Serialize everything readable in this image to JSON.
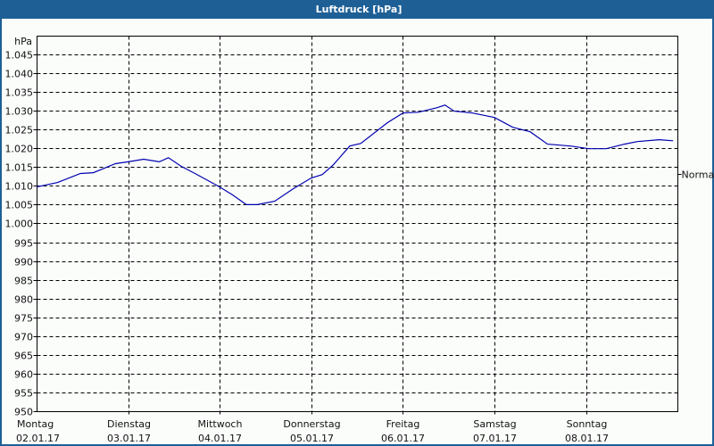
{
  "window": {
    "title": "Luftdruck [hPa]",
    "accent_color": "#1e6096"
  },
  "chart_data": {
    "type": "line",
    "title": "Luftdruck [hPa]",
    "xlabel": "",
    "ylabel": "hPa",
    "ylim": [
      950,
      1045
    ],
    "yticks": [
      "1.045",
      "1.040",
      "1.035",
      "1.030",
      "1.025",
      "1.020",
      "1.015",
      "1.010",
      "1.005",
      "1.000",
      "995",
      "990",
      "985",
      "980",
      "975",
      "970",
      "965",
      "960",
      "955",
      "950"
    ],
    "ytick_values": [
      1045,
      1040,
      1035,
      1030,
      1025,
      1020,
      1015,
      1010,
      1005,
      1000,
      995,
      990,
      985,
      980,
      975,
      970,
      965,
      960,
      955,
      950
    ],
    "x_categories": [
      {
        "day": "Montag",
        "date": "02.01.17"
      },
      {
        "day": "Dienstag",
        "date": "03.01.17"
      },
      {
        "day": "Mittwoch",
        "date": "04.01.17"
      },
      {
        "day": "Donnerstag",
        "date": "05.01.17"
      },
      {
        "day": "Freitag",
        "date": "06.01.17"
      },
      {
        "day": "Samstag",
        "date": "07.01.17"
      },
      {
        "day": "Sonntag",
        "date": "08.01.17"
      }
    ],
    "grid": true,
    "grid_style": "dashed",
    "reference_line": {
      "label": "Normal",
      "value": 1013.25
    },
    "series": [
      {
        "name": "Luftdruck",
        "color": "#0000b0",
        "x_days": [
          0.0,
          0.23,
          0.48,
          0.62,
          0.86,
          1.0,
          1.17,
          1.34,
          1.44,
          1.58,
          1.73,
          2.0,
          2.14,
          2.29,
          2.41,
          2.6,
          2.8,
          3.0,
          3.12,
          3.24,
          3.42,
          3.54,
          3.83,
          4.0,
          4.17,
          4.37,
          4.46,
          4.56,
          4.76,
          5.0,
          5.2,
          5.39,
          5.58,
          5.83,
          6.03,
          6.22,
          6.42,
          6.56,
          6.8,
          6.95
        ],
        "values": [
          1009.7,
          1010.9,
          1013.3,
          1013.5,
          1015.9,
          1016.4,
          1017.1,
          1016.4,
          1017.5,
          1015.2,
          1013.3,
          1009.7,
          1007.6,
          1005.0,
          1005.0,
          1005.9,
          1009.2,
          1012.1,
          1013.0,
          1015.6,
          1020.6,
          1021.3,
          1026.8,
          1029.4,
          1029.6,
          1030.8,
          1031.5,
          1029.9,
          1029.4,
          1028.2,
          1025.6,
          1024.4,
          1021.1,
          1020.6,
          1019.9,
          1019.9,
          1021.1,
          1021.8,
          1022.3,
          1022.0
        ]
      }
    ]
  }
}
